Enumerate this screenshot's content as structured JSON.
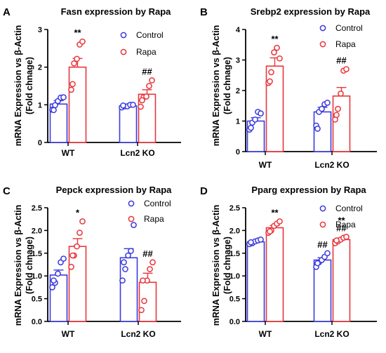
{
  "figure": {
    "colors": {
      "control": "#3a3adf",
      "rapa": "#e8363b",
      "axis": "#000000"
    },
    "legend": [
      "Control",
      "Rapa"
    ]
  },
  "chart_data": [
    {
      "panel": "A",
      "type": "bar",
      "title": "Fasn expression by Rapa",
      "ylabel": [
        "mRNA Expression vs β-Actin",
        "(Fold chnage)"
      ],
      "categories": [
        "WT",
        "Lcn2 KO"
      ],
      "ylim": [
        0,
        3
      ],
      "yticks": [
        0,
        1,
        2,
        3
      ],
      "legend_position": "top-right",
      "series": [
        {
          "name": "Control",
          "values": [
            1.02,
            0.97
          ],
          "sem": [
            0.09,
            0.03
          ],
          "points": [
            [
              0.87,
              0.99,
              1.1,
              1.19,
              1.2,
              0.86
            ],
            [
              0.93,
              0.96,
              0.96,
              1.0,
              1.0,
              0.98
            ]
          ]
        },
        {
          "name": "Rapa",
          "values": [
            2.0,
            1.28
          ],
          "sem": [
            0.23,
            0.12
          ],
          "points": [
            [
              1.4,
              2.1,
              2.22,
              2.6,
              2.68,
              1.55
            ],
            [
              0.95,
              1.2,
              1.22,
              1.5,
              1.65,
              1.12
            ]
          ]
        }
      ],
      "annotations": [
        {
          "category": "WT",
          "series": "Rapa",
          "text": "**"
        },
        {
          "category": "Lcn2 KO",
          "series": "Rapa",
          "text": "##"
        }
      ]
    },
    {
      "panel": "B",
      "type": "bar",
      "title": "Srebp2 expression by Rapa",
      "ylabel": [
        "mRNA Expression vs β-Actin",
        "(Fold chnage)"
      ],
      "categories": [
        "WT",
        "Lcn2 KO"
      ],
      "ylim": [
        0,
        4
      ],
      "yticks": [
        0,
        1,
        2,
        3,
        4
      ],
      "legend_position": "top-right",
      "series": [
        {
          "name": "Control",
          "values": [
            1.0,
            1.3
          ],
          "sem": [
            0.11,
            0.15
          ],
          "points": [
            [
              0.72,
              0.95,
              1.05,
              1.3,
              1.25,
              0.78
            ],
            [
              0.85,
              1.3,
              1.4,
              1.55,
              1.6,
              0.75
            ]
          ]
        },
        {
          "name": "Rapa",
          "values": [
            2.8,
            1.82
          ],
          "sem": [
            0.27,
            0.28
          ],
          "points": [
            [
              2.25,
              2.6,
              3.25,
              3.4,
              3.05,
              2.3
            ],
            [
              1.05,
              1.4,
              1.9,
              2.65,
              2.7,
              1.2
            ]
          ]
        }
      ],
      "annotations": [
        {
          "category": "WT",
          "series": "Rapa",
          "text": "**"
        },
        {
          "category": "Lcn2 KO",
          "series": "Rapa",
          "text": "##"
        }
      ]
    },
    {
      "panel": "C",
      "type": "bar",
      "title": "Pepck expression by Rapa",
      "ylabel": [
        "mRNA Expression vs β-Actin",
        "(Fold chnage)"
      ],
      "categories": [
        "WT",
        "Lcn2 KO"
      ],
      "ylim": [
        0,
        2.5
      ],
      "yticks": [
        0,
        0.5,
        1.0,
        1.5,
        2.0,
        2.5
      ],
      "ytick_labels": [
        "0.0",
        "0.5",
        "1.0",
        "1.5",
        "2.0",
        "2.5"
      ],
      "legend_position": "top-right",
      "series": [
        {
          "name": "Control",
          "values": [
            1.02,
            1.4
          ],
          "sem": [
            0.11,
            0.2
          ],
          "points": [
            [
              0.75,
              0.85,
              1.05,
              1.3,
              1.38,
              0.9
            ],
            [
              0.9,
              1.15,
              1.45,
              1.55,
              2.12,
              1.3
            ]
          ]
        },
        {
          "name": "Rapa",
          "values": [
            1.65,
            0.86
          ],
          "sem": [
            0.17,
            0.2
          ],
          "points": [
            [
              1.2,
              1.45,
              1.65,
              1.95,
              2.2,
              1.45
            ],
            [
              0.25,
              0.45,
              0.9,
              1.15,
              1.3,
              0.9
            ]
          ]
        }
      ],
      "annotations": [
        {
          "category": "WT",
          "series": "Rapa",
          "text": "*"
        },
        {
          "category": "Lcn2 KO",
          "series": "Rapa",
          "text": "##"
        }
      ]
    },
    {
      "panel": "D",
      "type": "bar",
      "title": "Pparg expression by Rapa",
      "ylabel": [
        "mRNA Expression vs β-Actin",
        "(Fold chnage)"
      ],
      "categories": [
        "WT",
        "Lcn2 KO"
      ],
      "ylim": [
        0,
        2.5
      ],
      "yticks": [
        0,
        0.5,
        1.0,
        1.5,
        2.0,
        2.5
      ],
      "ytick_labels": [
        "0.0",
        "0.5",
        "1.0",
        "1.5",
        "2.0",
        "2.5"
      ],
      "legend_position": "top-right",
      "series": [
        {
          "name": "Control",
          "values": [
            1.75,
            1.35
          ],
          "sem": [
            0.03,
            0.05
          ],
          "points": [
            [
              1.7,
              1.72,
              1.76,
              1.78,
              1.8,
              1.74
            ],
            [
              1.2,
              1.3,
              1.35,
              1.42,
              1.5,
              1.28
            ]
          ]
        },
        {
          "name": "Rapa",
          "values": [
            2.06,
            1.8
          ],
          "sem": [
            0.05,
            0.03
          ],
          "points": [
            [
              1.95,
              2.0,
              2.1,
              2.15,
              2.2,
              1.98
            ],
            [
              1.72,
              1.76,
              1.8,
              1.84,
              1.86,
              1.78
            ]
          ]
        }
      ],
      "annotations": [
        {
          "category": "WT",
          "series": "Rapa",
          "text": "**"
        },
        {
          "category": "Lcn2 KO",
          "series": "Control",
          "text": "##"
        },
        {
          "category": "Lcn2 KO",
          "series": "Rapa",
          "text": "##"
        },
        {
          "category": "Lcn2 KO",
          "series": "Rapa",
          "text": "**"
        }
      ]
    }
  ]
}
